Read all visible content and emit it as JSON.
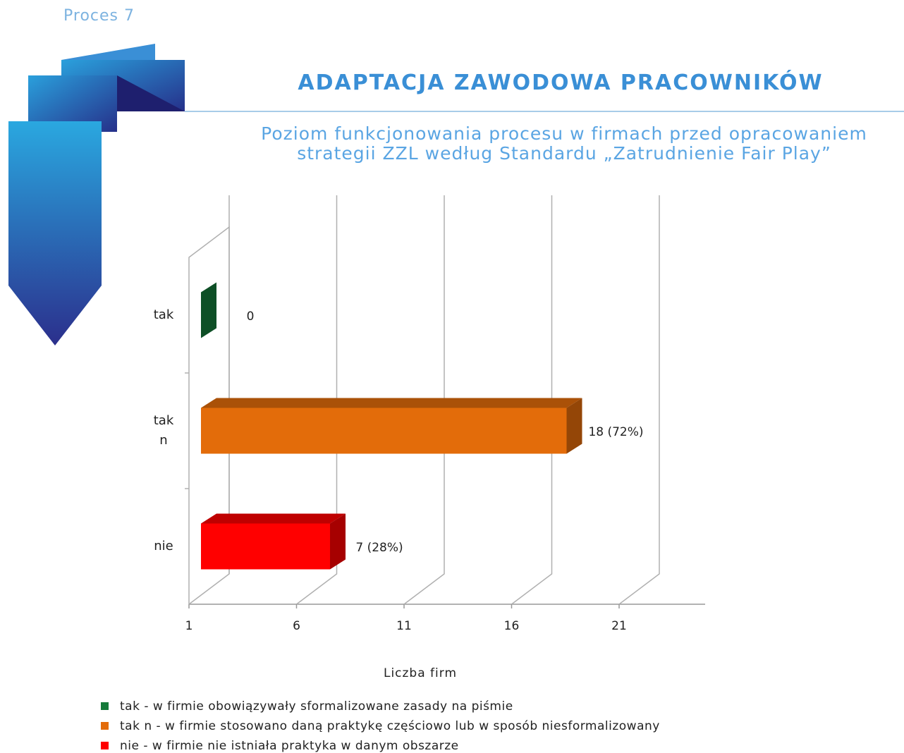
{
  "section": "Proces 7",
  "chart_data": {
    "type": "bar3d-horizontal",
    "title": "ADAPTACJA ZAWODOWA PRACOWNIKÓW",
    "subtitle": [
      "Poziom funkcjonowania procesu w firmach przed opracowaniem",
      "strategii ZZL według Standardu „Zatrudnienie Fair Play”"
    ],
    "categories": [
      "tak",
      "tak n",
      "nie"
    ],
    "values": [
      0,
      18,
      7
    ],
    "value_labels": [
      "0",
      "18 (72%)",
      "7 (28%)"
    ],
    "colors": [
      "#167a3a",
      "#e36c0a",
      "#ff0000"
    ],
    "xlabel": "Liczba firm",
    "xlim": [
      1,
      25
    ],
    "xticks": [
      1,
      6,
      11,
      16,
      21
    ],
    "grid": true,
    "legend": [
      "tak - w firmie obowiązywały sformalizowane zasady na piśmie",
      "tak n - w firmie stosowano daną praktykę częściowo lub w sposób niesformalizowany",
      "nie - w firmie nie istniała praktyka w danym obszarze"
    ]
  }
}
